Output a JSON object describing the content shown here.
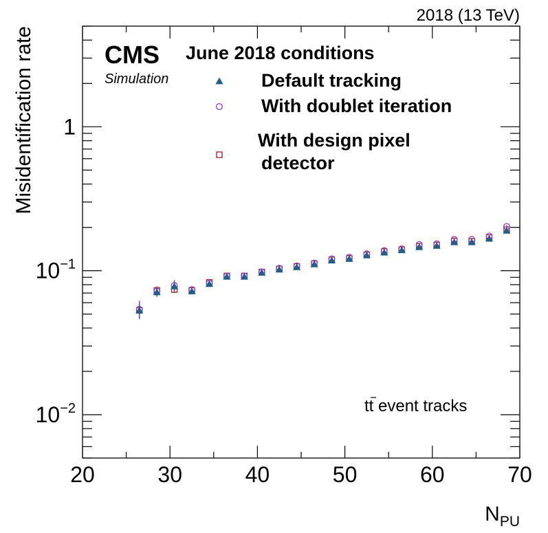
{
  "chart_data": {
    "type": "scatter",
    "title": "",
    "experiment": "CMS",
    "experiment_sub": "Simulation",
    "lumi_label": "2018 (13 TeV)",
    "xlabel": "N",
    "xlabel_sub": "PU",
    "ylabel": "Misidentification rate",
    "xlim": [
      20,
      70
    ],
    "ylim": [
      0.005,
      5
    ],
    "yscale": "log",
    "x_ticks": [
      "20",
      "30",
      "40",
      "50",
      "60",
      "70"
    ],
    "y_ticks": [
      {
        "value": 0.01,
        "base": "10",
        "exp": "−2"
      },
      {
        "value": 0.1,
        "base": "10",
        "exp": "−1"
      },
      {
        "value": 1,
        "base": "1",
        "exp": ""
      }
    ],
    "legend_header": "June 2018 conditions",
    "annotation_pre": "t",
    "annotation_bar": "t",
    "annotation_post": " event tracks",
    "grid": false,
    "series": [
      {
        "name": "Default tracking",
        "marker": "triangle",
        "color": "#1f5f8b",
        "x": [
          26.5,
          28.5,
          30.5,
          32.5,
          34.5,
          36.5,
          38.5,
          40.5,
          42.5,
          44.5,
          46.5,
          48.5,
          50.5,
          52.5,
          54.5,
          56.5,
          58.5,
          60.5,
          62.5,
          64.5,
          66.5,
          68.5
        ],
        "y": [
          0.053,
          0.071,
          0.078,
          0.072,
          0.081,
          0.091,
          0.091,
          0.097,
          0.102,
          0.106,
          0.111,
          0.118,
          0.121,
          0.128,
          0.134,
          0.139,
          0.146,
          0.149,
          0.158,
          0.158,
          0.167,
          0.19
        ],
        "err": [
          0.006,
          0.005,
          0.005,
          0.003,
          0.002,
          0.002,
          0.002,
          0.002,
          0.002,
          0.002,
          0.002,
          0.002,
          0.002,
          0.002,
          0.002,
          0.002,
          0.002,
          0.002,
          0.002,
          0.002,
          0.003,
          0.004
        ]
      },
      {
        "name": "With doublet iteration",
        "marker": "circle",
        "color": "#8f3ad6",
        "x": [
          26.5,
          28.5,
          30.5,
          32.5,
          34.5,
          36.5,
          38.5,
          40.5,
          42.5,
          44.5,
          46.5,
          48.5,
          50.5,
          52.5,
          54.5,
          56.5,
          58.5,
          60.5,
          62.5,
          64.5,
          66.5,
          68.5
        ],
        "y": [
          0.054,
          0.072,
          0.079,
          0.074,
          0.082,
          0.092,
          0.092,
          0.098,
          0.104,
          0.108,
          0.113,
          0.121,
          0.124,
          0.131,
          0.138,
          0.142,
          0.152,
          0.154,
          0.165,
          0.165,
          0.174,
          0.203
        ],
        "err": [
          0.008,
          0.006,
          0.007,
          0.003,
          0.002,
          0.002,
          0.002,
          0.002,
          0.002,
          0.002,
          0.002,
          0.002,
          0.002,
          0.002,
          0.002,
          0.002,
          0.002,
          0.002,
          0.002,
          0.002,
          0.003,
          0.004
        ]
      },
      {
        "name": "With design pixel detector",
        "name_line1": "With design pixel",
        "name_line2": "detector",
        "marker": "square",
        "color": "#9b1c1c",
        "x": [
          26.5,
          28.5,
          30.5,
          32.5,
          34.5,
          36.5,
          38.5,
          40.5,
          42.5,
          44.5,
          46.5,
          48.5,
          50.5,
          52.5,
          54.5,
          56.5,
          58.5,
          60.5,
          62.5,
          64.5,
          66.5,
          68.5
        ],
        "y": [
          0.053,
          0.073,
          0.074,
          0.073,
          0.083,
          0.092,
          0.092,
          0.098,
          0.103,
          0.107,
          0.112,
          0.119,
          0.122,
          0.129,
          0.136,
          0.14,
          0.148,
          0.151,
          0.161,
          0.16,
          0.17,
          0.193
        ],
        "err": [
          0.004,
          0.004,
          0.004,
          0.002,
          0.002,
          0.002,
          0.002,
          0.002,
          0.002,
          0.002,
          0.002,
          0.002,
          0.002,
          0.002,
          0.002,
          0.002,
          0.002,
          0.002,
          0.002,
          0.002,
          0.003,
          0.004
        ]
      }
    ]
  }
}
